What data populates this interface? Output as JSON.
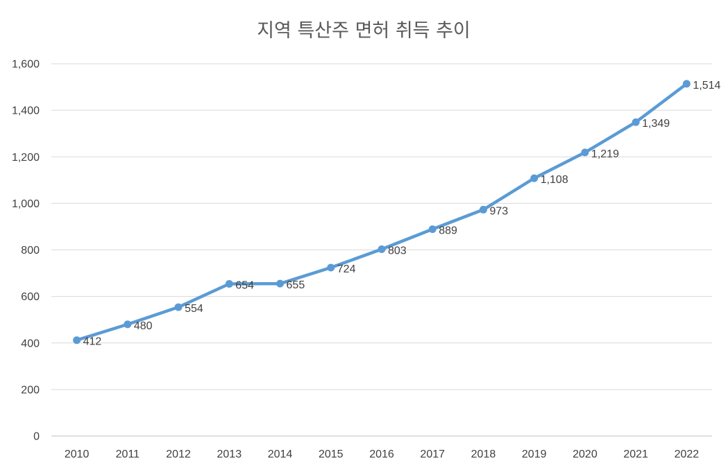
{
  "chart_data": {
    "type": "line",
    "title": "지역 특산주 면허 취득 추이",
    "xlabel": "",
    "ylabel": "",
    "categories": [
      "2010",
      "2011",
      "2012",
      "2013",
      "2014",
      "2015",
      "2016",
      "2017",
      "2018",
      "2019",
      "2020",
      "2021",
      "2022"
    ],
    "series": [
      {
        "values": [
          412,
          480,
          554,
          654,
          655,
          724,
          803,
          889,
          973,
          1108,
          1219,
          1349,
          1514
        ],
        "data_labels": [
          "412",
          "480",
          "554",
          "654",
          "655",
          "724",
          "803",
          "889",
          "973",
          "1,108",
          "1,219",
          "1,349",
          "1,514"
        ],
        "color": "#5b9bd5"
      }
    ],
    "ylim": [
      0,
      1600
    ],
    "y_ticks": [
      0,
      200,
      400,
      600,
      800,
      1000,
      1200,
      1400,
      1600
    ],
    "y_tick_labels": [
      "0",
      "200",
      "400",
      "600",
      "800",
      "1,000",
      "1,200",
      "1,400",
      "1,600"
    ],
    "grid": true,
    "legend": "none",
    "markers": true
  }
}
